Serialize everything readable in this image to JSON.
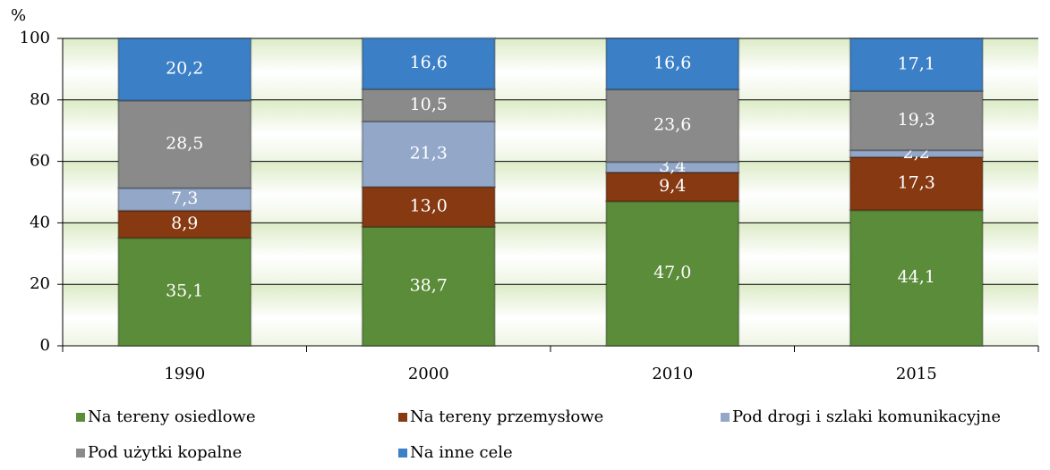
{
  "chart_data": {
    "type": "stacked-bar",
    "y_label": "%",
    "categories": [
      "1990",
      "2000",
      "2010",
      "2015"
    ],
    "series": [
      {
        "name": "Na tereny osiedlowe",
        "color": "#5b8c39",
        "values": [
          35.1,
          38.7,
          47.0,
          44.1
        ],
        "value_labels": [
          "35,1",
          "38,7",
          "47,0",
          "44,1"
        ]
      },
      {
        "name": "Na tereny przemysłowe",
        "color": "#873a12",
        "values": [
          8.9,
          13.0,
          9.4,
          17.3
        ],
        "value_labels": [
          "8,9",
          "13,0",
          "9,4",
          "17,3"
        ]
      },
      {
        "name": "Pod drogi i szlaki komunikacyjne",
        "color": "#93a8c9",
        "values": [
          7.3,
          21.3,
          3.4,
          2.2
        ],
        "value_labels": [
          "7,3",
          "21,3",
          "3,4",
          "2,2"
        ]
      },
      {
        "name": "Pod użytki kopalne",
        "color": "#8a8a8a",
        "values": [
          28.5,
          10.5,
          23.6,
          19.3
        ],
        "value_labels": [
          "28,5",
          "10,5",
          "23,6",
          "19,3"
        ]
      },
      {
        "name": "Na inne cele",
        "color": "#3b7fc6",
        "values": [
          20.2,
          16.6,
          16.6,
          17.1
        ],
        "value_labels": [
          "20,2",
          "16,6",
          "16,6",
          "17,1"
        ]
      }
    ],
    "ylim": [
      0,
      100
    ],
    "yticks": [
      0,
      20,
      40,
      60,
      80,
      100
    ],
    "grid": true
  }
}
